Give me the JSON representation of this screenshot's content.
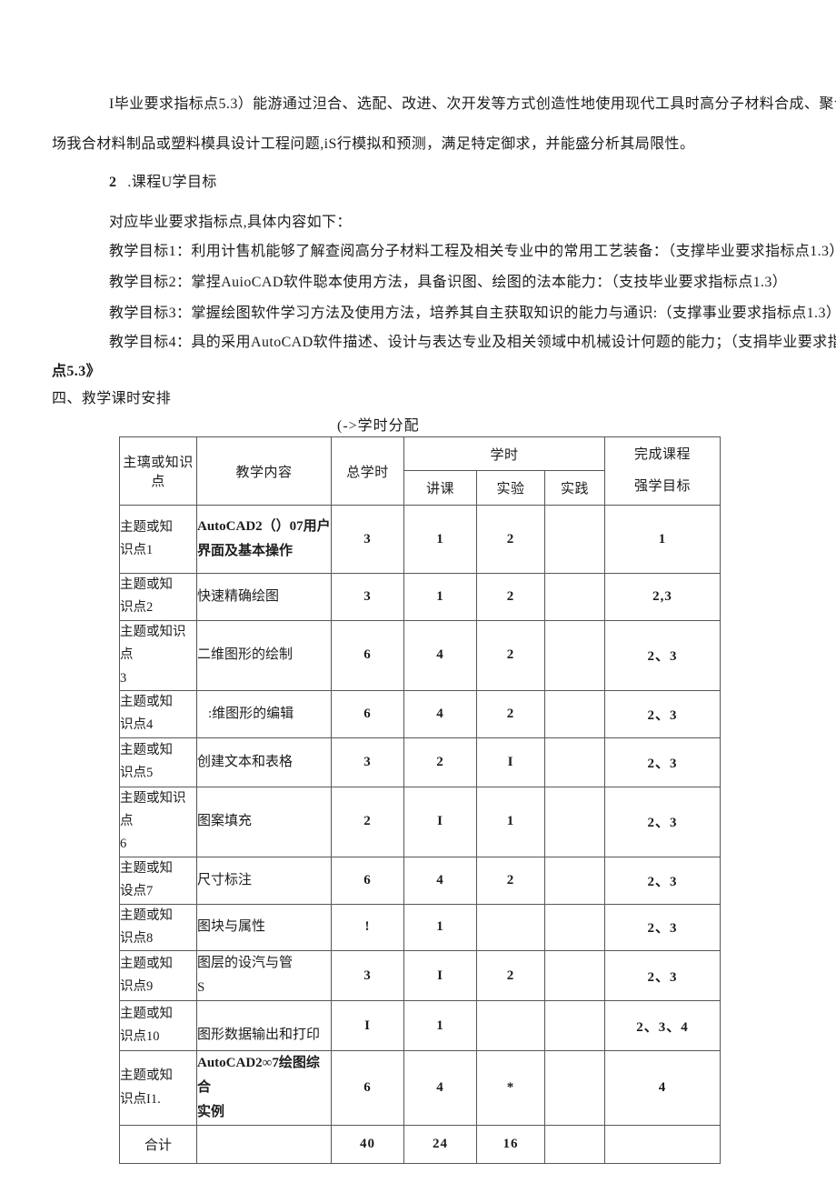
{
  "document": {
    "intro_line1": "I毕业要求指标点5.3）能游通过泹合、选配、改进、次开发等方式创造性地使用现代工具时高分子材料合成、聚合物",
    "intro_line2": "场我合材料制品或塑料模具设计工程问题,iS行模拟和预测，满足特定御求，并能盛分析其局限性。",
    "section2_num": "2",
    "section2_title": ".课程U学目标",
    "objectives_intro": "对应毕业要求指标点,具体内容如下：",
    "objectives": [
      {
        "label": "教学目标1：",
        "text": "利用计售机能够了解查阅高分子材料工程及相关专业中的常用工艺装备：（支撑毕业要求指标点1.3）"
      },
      {
        "label": "教学目标2：",
        "text": "掌捏AuioCAD软件聪本使用方法，具备识图、绘图的法本能力：（支技毕业要求指标点1.3）"
      },
      {
        "label": "教学目标3：",
        "text": "掌握绘图软件学习方法及使用方法，培养其自主获取知识的能力与通识:（支撑事业要求指标点1.3）"
      },
      {
        "label": "教学目标4：",
        "text": "具的采用AutoCAD软件描述、设计与表达专业及相关领域中机械设计何题的能力；（支捐毕业要求指标"
      }
    ],
    "objective4_cont": "点5.3》",
    "section4_heading": "四、救学课时安排",
    "table_title": "(->学时分配"
  },
  "table": {
    "header": {
      "topic": "主璃或知识点",
      "content": "教学内容",
      "total": "总学时",
      "hours": "学时",
      "lecture": "讲课",
      "experiment": "实验",
      "practice": "实践",
      "goal_line1": "完成课程",
      "goal_line2": "强学目标"
    },
    "rows": [
      {
        "topic": [
          "主题或知",
          "识点1"
        ],
        "content": [
          "AutoCAD2（）07用户",
          "界面及基本操作"
        ],
        "content_bold": true,
        "total": "3",
        "lecture": "1",
        "experiment": "2",
        "practice": "",
        "goal": "1"
      },
      {
        "topic": [
          "主题或知",
          "识点2"
        ],
        "content": [
          "快速精确绘图"
        ],
        "total": "3",
        "lecture": "1",
        "experiment": "2",
        "practice": "",
        "goal": "2,3"
      },
      {
        "topic": [
          "主题或知识点",
          "3"
        ],
        "content": [
          "二维图形的绘制"
        ],
        "total": "6",
        "lecture": "4",
        "experiment": "2",
        "practice": "",
        "goal": "2、3"
      },
      {
        "topic": [
          "主题或知",
          "识点4"
        ],
        "content": [
          ":维图形的编辑"
        ],
        "content_indent": true,
        "total": "6",
        "lecture": "4",
        "experiment": "2",
        "practice": "",
        "goal": "2、3"
      },
      {
        "topic": [
          "主题或知",
          "识点5"
        ],
        "content": [
          "创建文本和表格"
        ],
        "total": "3",
        "lecture": "2",
        "experiment": "I",
        "practice": "",
        "goal": "2、3"
      },
      {
        "topic": [
          "主题或知识点",
          "6"
        ],
        "content": [
          "图案填充"
        ],
        "total": "2",
        "lecture": "I",
        "experiment": "1",
        "practice": "",
        "goal": "2、3"
      },
      {
        "topic": [
          "主题或知",
          "设点7"
        ],
        "content": [
          "尺寸标注"
        ],
        "total": "6",
        "lecture": "4",
        "experiment": "2",
        "practice": "",
        "goal": "2、3"
      },
      {
        "topic": [
          "主题或知",
          "识点8"
        ],
        "content": [
          "图块与属性"
        ],
        "total": "!",
        "lecture": "1",
        "experiment": "",
        "practice": "",
        "goal": "2、3"
      },
      {
        "topic": [
          "主题或知",
          "识点9"
        ],
        "content": [
          "图层的设汽与管",
          "S"
        ],
        "total": "3",
        "lecture": "I",
        "experiment": "2",
        "practice": "",
        "goal": "2、3"
      },
      {
        "topic": [
          "主题或知",
          "识点10"
        ],
        "content": [
          "图形数据输出和打印"
        ],
        "content_valign": "bottom",
        "total": "I",
        "lecture": "1",
        "experiment": "",
        "practice": "",
        "goal": "2、3、4"
      },
      {
        "topic": [
          "主题或知",
          "识点I1."
        ],
        "content": [
          "AutoCAD2∞7绘图综合",
          "实例"
        ],
        "content_bold": true,
        "total": "6",
        "lecture": "4",
        "experiment": "*",
        "practice": "",
        "goal": "4"
      }
    ],
    "total_row": {
      "label": "合计",
      "total": "40",
      "lecture": "24",
      "experiment": "16",
      "practice": "",
      "goal": ""
    }
  }
}
